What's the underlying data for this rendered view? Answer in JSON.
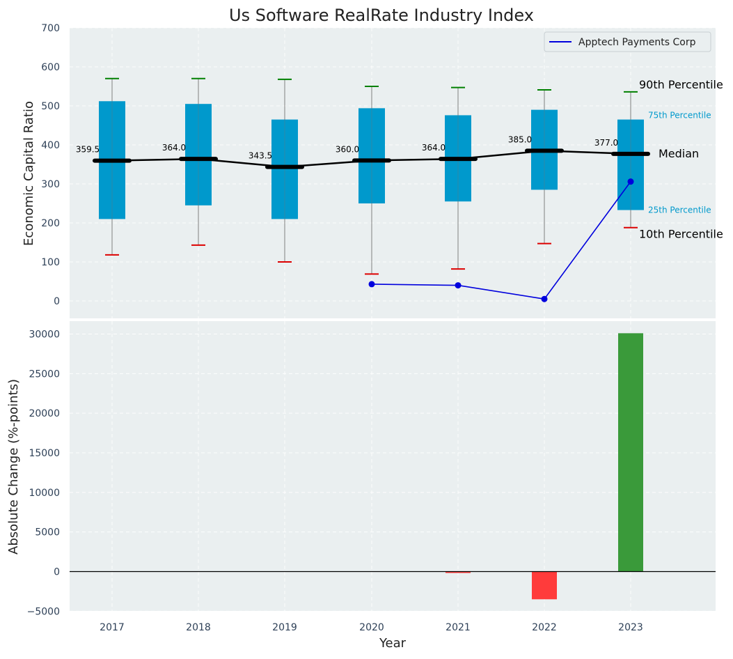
{
  "chart_data": [
    {
      "type": "box",
      "title": "Us Software RealRate Industry Index",
      "ylabel": "Economic Capital Ratio",
      "ylim": [
        -50,
        700
      ],
      "yticks": [
        0,
        100,
        200,
        300,
        400,
        500,
        600,
        700
      ],
      "grid": true,
      "categories": [
        "2017",
        "2018",
        "2019",
        "2020",
        "2021",
        "2022",
        "2023"
      ],
      "p10": [
        118,
        143,
        100,
        69,
        82,
        147,
        188
      ],
      "p25": [
        210,
        245,
        210,
        250,
        255,
        285,
        233
      ],
      "median": [
        359.5,
        364.0,
        343.5,
        360.0,
        364.0,
        385.0,
        377.0
      ],
      "median_labels": [
        "359.5",
        "364.0",
        "343.5",
        "360.0",
        "364.0",
        "385.0",
        "377.0"
      ],
      "p75": [
        512,
        505,
        465,
        494,
        476,
        490,
        465
      ],
      "p90": [
        570,
        570,
        568,
        550,
        547,
        541,
        536
      ],
      "annotations": {
        "p90": "90th Percentile",
        "p75": "75th Percentile",
        "median": "Median",
        "p25": "25th Percentile",
        "p10": "10th Percentile"
      },
      "series": [
        {
          "name": "Apptech Payments Corp",
          "x": [
            "2020",
            "2021",
            "2022",
            "2023"
          ],
          "values": [
            43,
            40,
            5,
            306
          ]
        }
      ],
      "legend_position": "top-right"
    },
    {
      "type": "bar",
      "xlabel": "Year",
      "ylabel": "Absolute Change (%-points)",
      "ylim": [
        -5000,
        32000
      ],
      "yticks": [
        -5000,
        0,
        5000,
        10000,
        15000,
        20000,
        25000,
        30000
      ],
      "ytick_labels": [
        "−5000",
        "0",
        "5000",
        "10000",
        "15000",
        "20000",
        "25000",
        "30000"
      ],
      "grid": true,
      "categories": [
        "2017",
        "2018",
        "2019",
        "2020",
        "2021",
        "2022",
        "2023"
      ],
      "values": [
        0,
        0,
        0,
        0,
        -150,
        -3500,
        30100
      ]
    }
  ],
  "colors": {
    "background": "#eaeff0",
    "box": "#0099cc",
    "median": "#000000",
    "p90_cap": "#008000",
    "p10_cap": "#dd0000",
    "series": "#0000dd",
    "bar_positive": "#3a9a3a",
    "bar_negative": "#ff3b3b",
    "percentile_label": "#0099cc"
  }
}
